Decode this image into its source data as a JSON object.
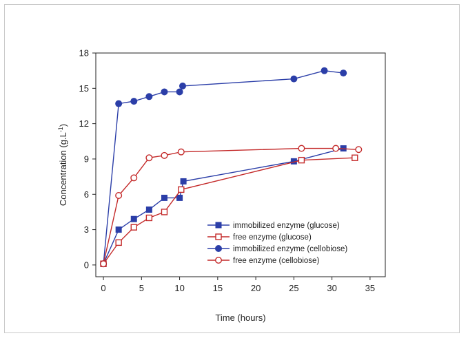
{
  "chart_data": {
    "type": "line",
    "xlabel": "Time (hours)",
    "ylabel": "Concentration (g.L",
    "ylabel_sup": "-1",
    "ylabel_close": ")",
    "xlim": [
      -1,
      37
    ],
    "ylim": [
      -1,
      18
    ],
    "x_ticks": [
      0,
      5,
      10,
      15,
      20,
      25,
      30,
      35
    ],
    "y_ticks": [
      0,
      3,
      6,
      9,
      12,
      15,
      18
    ],
    "grid": false,
    "legend_position": "bottom-right",
    "series": [
      {
        "name": "immobilized enzyme (glucose)",
        "color": "#2b3ea8",
        "marker": "filled-square",
        "x": [
          0,
          2,
          4,
          6,
          8,
          10,
          10.5,
          25,
          31.5
        ],
        "y": [
          0.1,
          3.0,
          3.9,
          4.7,
          5.7,
          5.7,
          7.1,
          8.8,
          9.9
        ]
      },
      {
        "name": "free enzyme (glucose)",
        "color": "#c42a2a",
        "marker": "open-square",
        "x": [
          0,
          2,
          4,
          6,
          8,
          10.2,
          26,
          33
        ],
        "y": [
          0.1,
          1.9,
          3.2,
          4.0,
          4.5,
          6.4,
          8.9,
          9.1
        ]
      },
      {
        "name": "immobilized enzyme (cellobiose)",
        "color": "#2b3ea8",
        "marker": "filled-circle",
        "x": [
          0,
          2,
          4,
          6,
          8,
          10,
          10.4,
          25,
          29,
          31.5
        ],
        "y": [
          0.1,
          13.7,
          13.9,
          14.3,
          14.7,
          14.7,
          15.2,
          15.8,
          16.5,
          16.3
        ]
      },
      {
        "name": "free enzyme (cellobiose)",
        "color": "#c42a2a",
        "marker": "open-circle",
        "x": [
          0,
          2,
          4,
          6,
          8,
          10.2,
          26,
          30.5,
          33.5
        ],
        "y": [
          0.1,
          5.9,
          7.4,
          9.1,
          9.3,
          9.6,
          9.9,
          9.9,
          9.8
        ]
      }
    ]
  }
}
